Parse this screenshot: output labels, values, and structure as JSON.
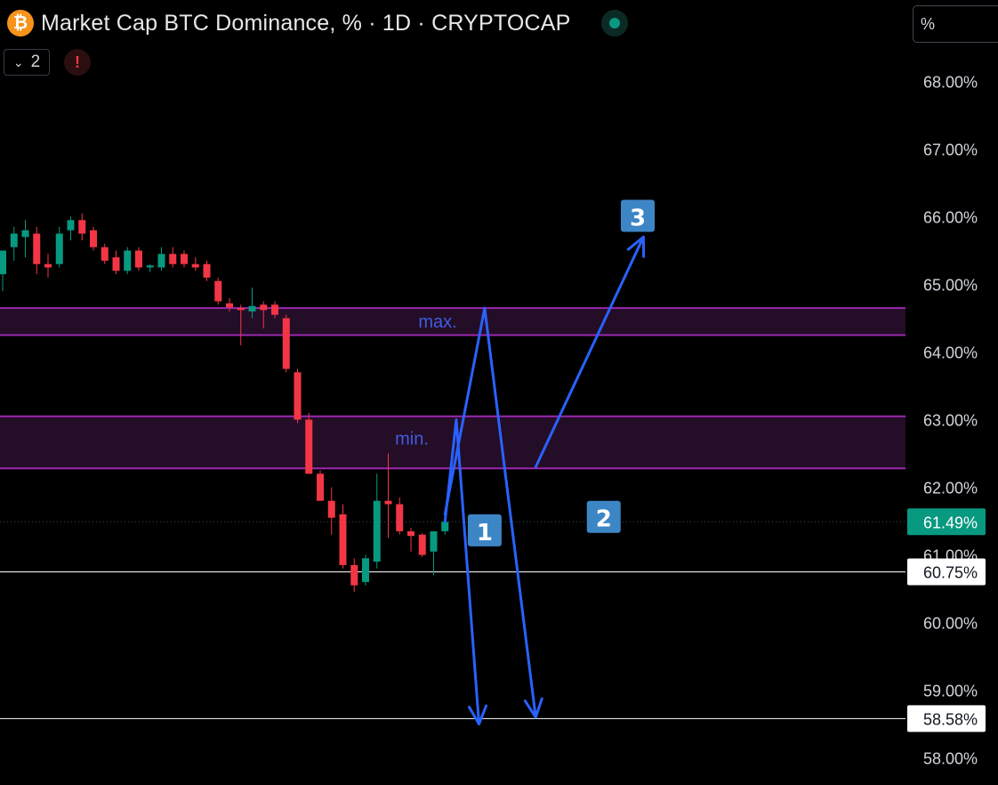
{
  "header": {
    "coin_symbol": "₿",
    "title": "Market Cap BTC Dominance, % · 1D · CRYPTOCAP",
    "status_color": "#089981"
  },
  "toolbar": {
    "indicator_count": "2",
    "alert_symbol": "!",
    "unit": "%"
  },
  "colors": {
    "up": "#089981",
    "down": "#f23645",
    "zone_border": "#9c27b0",
    "arrows": "#2962ff",
    "markers": "#3d86c6"
  },
  "chart_data": {
    "type": "candlestick",
    "ylim": [
      57.6,
      68.8
    ],
    "y_ticks": [
      "58.00%",
      "59.00%",
      "60.00%",
      "61.00%",
      "62.00%",
      "63.00%",
      "64.00%",
      "65.00%",
      "66.00%",
      "67.00%",
      "68.00%"
    ],
    "y_tick_values": [
      58,
      59,
      60,
      61,
      62,
      63,
      64,
      65,
      66,
      67,
      68
    ],
    "candles": [
      {
        "o": 65.15,
        "h": 65.5,
        "l": 64.9,
        "c": 65.5
      },
      {
        "o": 65.55,
        "h": 65.85,
        "l": 65.35,
        "c": 65.75
      },
      {
        "o": 65.7,
        "h": 65.95,
        "l": 65.4,
        "c": 65.8
      },
      {
        "o": 65.75,
        "h": 65.85,
        "l": 65.15,
        "c": 65.3
      },
      {
        "o": 65.3,
        "h": 65.45,
        "l": 65.1,
        "c": 65.25
      },
      {
        "o": 65.3,
        "h": 65.85,
        "l": 65.25,
        "c": 65.75
      },
      {
        "o": 65.8,
        "h": 66.0,
        "l": 65.65,
        "c": 65.95
      },
      {
        "o": 65.95,
        "h": 66.05,
        "l": 65.65,
        "c": 65.75
      },
      {
        "o": 65.8,
        "h": 65.85,
        "l": 65.5,
        "c": 65.55
      },
      {
        "o": 65.55,
        "h": 65.6,
        "l": 65.3,
        "c": 65.35
      },
      {
        "o": 65.4,
        "h": 65.5,
        "l": 65.15,
        "c": 65.2
      },
      {
        "o": 65.2,
        "h": 65.55,
        "l": 65.15,
        "c": 65.5
      },
      {
        "o": 65.5,
        "h": 65.55,
        "l": 65.2,
        "c": 65.25
      },
      {
        "o": 65.25,
        "h": 65.3,
        "l": 65.18,
        "c": 65.28
      },
      {
        "o": 65.25,
        "h": 65.55,
        "l": 65.2,
        "c": 65.45
      },
      {
        "o": 65.45,
        "h": 65.55,
        "l": 65.25,
        "c": 65.3
      },
      {
        "o": 65.45,
        "h": 65.5,
        "l": 65.25,
        "c": 65.3
      },
      {
        "o": 65.3,
        "h": 65.4,
        "l": 65.2,
        "c": 65.25
      },
      {
        "o": 65.3,
        "h": 65.35,
        "l": 65.05,
        "c": 65.1
      },
      {
        "o": 65.05,
        "h": 65.1,
        "l": 64.7,
        "c": 64.75
      },
      {
        "o": 64.72,
        "h": 64.8,
        "l": 64.6,
        "c": 64.66
      },
      {
        "o": 64.65,
        "h": 64.7,
        "l": 64.1,
        "c": 64.62
      },
      {
        "o": 64.6,
        "h": 64.95,
        "l": 64.5,
        "c": 64.68
      },
      {
        "o": 64.7,
        "h": 64.75,
        "l": 64.35,
        "c": 64.62
      },
      {
        "o": 64.7,
        "h": 64.75,
        "l": 64.5,
        "c": 64.55
      },
      {
        "o": 64.5,
        "h": 64.55,
        "l": 63.7,
        "c": 63.75
      },
      {
        "o": 63.7,
        "h": 63.75,
        "l": 62.95,
        "c": 63.0
      },
      {
        "o": 63.0,
        "h": 63.1,
        "l": 62.2,
        "c": 62.2
      },
      {
        "o": 62.2,
        "h": 62.25,
        "l": 61.8,
        "c": 61.8
      },
      {
        "o": 61.8,
        "h": 62.0,
        "l": 61.3,
        "c": 61.55
      },
      {
        "o": 61.6,
        "h": 61.75,
        "l": 60.8,
        "c": 60.85
      },
      {
        "o": 60.85,
        "h": 60.95,
        "l": 60.45,
        "c": 60.55
      },
      {
        "o": 60.6,
        "h": 61.0,
        "l": 60.55,
        "c": 60.95
      },
      {
        "o": 60.9,
        "h": 62.2,
        "l": 60.8,
        "c": 61.8
      },
      {
        "o": 61.8,
        "h": 62.5,
        "l": 61.25,
        "c": 61.75
      },
      {
        "o": 61.75,
        "h": 61.85,
        "l": 61.3,
        "c": 61.35
      },
      {
        "o": 61.35,
        "h": 61.4,
        "l": 61.05,
        "c": 61.28
      },
      {
        "o": 61.3,
        "h": 61.32,
        "l": 60.97,
        "c": 61.0
      },
      {
        "o": 61.05,
        "h": 61.35,
        "l": 60.7,
        "c": 61.35
      },
      {
        "o": 61.35,
        "h": 61.55,
        "l": 61.3,
        "c": 61.49
      }
    ],
    "zones": [
      {
        "top": 64.65,
        "bottom": 64.25,
        "label": "max."
      },
      {
        "top": 63.05,
        "bottom": 62.28,
        "label": "min."
      }
    ],
    "horizontal_lines": [
      {
        "value": 60.75,
        "label": "60.75%"
      },
      {
        "value": 58.58,
        "label": "58.58%"
      }
    ],
    "current_price": {
      "value": 61.49,
      "label": "61.49%"
    },
    "scenario_paths": [
      {
        "points": [
          [
            39,
            61.49
          ],
          [
            40,
            63.0
          ],
          [
            42,
            58.5
          ]
        ]
      },
      {
        "points": [
          [
            39,
            61.6
          ],
          [
            42.5,
            64.65
          ],
          [
            47,
            58.6
          ]
        ]
      },
      {
        "points": [
          [
            47,
            62.3
          ],
          [
            56.5,
            65.7
          ]
        ]
      }
    ],
    "scenario_markers": [
      {
        "label": "1",
        "x": 42.5,
        "y": 61.35
      },
      {
        "label": "2",
        "x": 53,
        "y": 61.55
      },
      {
        "label": "3",
        "x": 56,
        "y": 66.0
      }
    ]
  }
}
